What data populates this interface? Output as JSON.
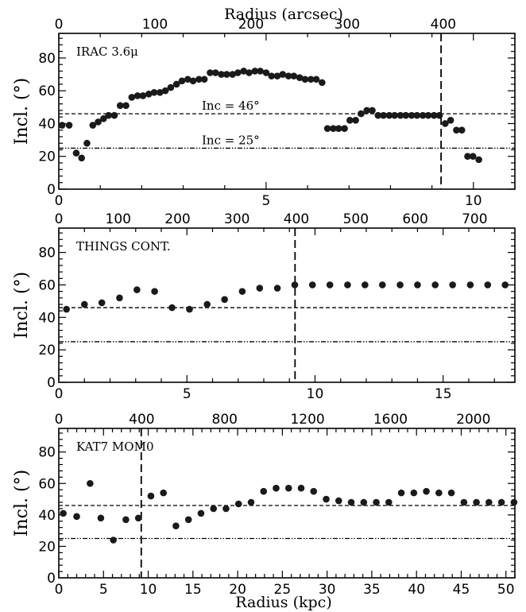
{
  "figure": {
    "top_axis_title": "Radius (arcsec)",
    "bottom_axis_title": "Radius (kpc)"
  },
  "chart_data": [
    {
      "type": "scatter",
      "panel_label": "IRAC 3.6μ",
      "ylabel": "Incl. (°)",
      "xlabel_top": "Radius (arcsec)",
      "xlim": [
        0,
        11
      ],
      "ylim": [
        0,
        95
      ],
      "top_xlim": [
        0,
        474.5
      ],
      "x_ticks": [
        0,
        5,
        10
      ],
      "y_ticks": [
        0,
        20,
        40,
        60,
        80
      ],
      "top_ticks": [
        0,
        100,
        200,
        300,
        400
      ],
      "vline": 9.22,
      "hlines": [
        {
          "y": 46,
          "style": "dashed",
          "label": "Inc = 46°"
        },
        {
          "y": 25,
          "style": "dashdotdot",
          "label": "Inc = 25°"
        }
      ],
      "x": [
        0.08,
        0.25,
        0.42,
        0.55,
        0.68,
        0.82,
        0.95,
        1.08,
        1.2,
        1.34,
        1.48,
        1.62,
        1.76,
        1.9,
        2.03,
        2.17,
        2.3,
        2.44,
        2.57,
        2.7,
        2.84,
        2.97,
        3.11,
        3.24,
        3.38,
        3.51,
        3.65,
        3.78,
        3.92,
        4.05,
        4.19,
        4.32,
        4.46,
        4.59,
        4.73,
        4.86,
        5.0,
        5.13,
        5.27,
        5.4,
        5.54,
        5.67,
        5.81,
        5.94,
        6.08,
        6.21,
        6.35,
        6.48,
        6.62,
        6.75,
        6.89,
        7.02,
        7.16,
        7.29,
        7.43,
        7.56,
        7.7,
        7.83,
        7.97,
        8.1,
        8.24,
        8.37,
        8.51,
        8.64,
        8.78,
        8.91,
        9.05,
        9.18,
        9.32,
        9.45,
        9.59,
        9.72,
        9.86,
        9.99,
        10.13
      ],
      "y": [
        39,
        39,
        22,
        19,
        28,
        39,
        41,
        43,
        45,
        45,
        51,
        51,
        56,
        57,
        57,
        58,
        59,
        59,
        60,
        62,
        64,
        66,
        67,
        66,
        67,
        67,
        71,
        71,
        70,
        70,
        70,
        71,
        72,
        71,
        72,
        72,
        71,
        69,
        69,
        70,
        69,
        69,
        68,
        67,
        67,
        67,
        65,
        37,
        37,
        37,
        37,
        42,
        42,
        46,
        48,
        48,
        45,
        45,
        45,
        45,
        45,
        45,
        45,
        45,
        45,
        45,
        45,
        45,
        40,
        42,
        36,
        36,
        20,
        20,
        18
      ]
    },
    {
      "type": "scatter",
      "panel_label": "THINGS CONT.",
      "ylabel": "Incl. (°)",
      "xlim": [
        0,
        17.8
      ],
      "ylim": [
        0,
        95
      ],
      "top_xlim": [
        0,
        767.8
      ],
      "x_ticks": [
        0,
        5,
        10,
        15
      ],
      "y_ticks": [
        0,
        20,
        40,
        60,
        80
      ],
      "top_ticks": [
        0,
        100,
        200,
        300,
        400,
        500,
        600,
        700
      ],
      "vline": 9.22,
      "hlines": [
        {
          "y": 46,
          "style": "dashed",
          "label": ""
        },
        {
          "y": 25,
          "style": "dashdotdot",
          "label": ""
        }
      ],
      "x": [
        0.3,
        1.0,
        1.68,
        2.37,
        3.05,
        3.74,
        4.42,
        5.1,
        5.79,
        6.47,
        7.16,
        7.84,
        8.53,
        9.21,
        9.9,
        10.58,
        11.27,
        11.95,
        12.63,
        13.32,
        14.0,
        14.69,
        15.37,
        16.06,
        16.74,
        17.42
      ],
      "y": [
        45,
        48,
        49,
        52,
        57,
        56,
        46,
        45,
        48,
        51,
        56,
        58,
        58,
        60,
        60,
        60,
        60,
        60,
        60,
        60,
        60,
        60,
        60,
        60,
        60,
        60
      ]
    },
    {
      "type": "scatter",
      "panel_label": "KAT7 MOM0",
      "ylabel": "Incl. (°)",
      "xlim": [
        0,
        51
      ],
      "ylim": [
        0,
        95
      ],
      "top_xlim": [
        0,
        2200
      ],
      "x_ticks": [
        0,
        5,
        10,
        15,
        20,
        25,
        30,
        35,
        40,
        45,
        50
      ],
      "y_ticks": [
        0,
        20,
        40,
        60,
        80
      ],
      "top_ticks": [
        0,
        400,
        800,
        1200,
        1600,
        2000
      ],
      "vline": 9.22,
      "hlines": [
        {
          "y": 46,
          "style": "dashed",
          "label": ""
        },
        {
          "y": 25,
          "style": "dashdotdot",
          "label": ""
        }
      ],
      "x": [
        0.5,
        2.0,
        3.5,
        4.7,
        6.1,
        7.5,
        8.9,
        10.3,
        11.7,
        13.1,
        14.5,
        15.9,
        17.3,
        18.7,
        20.1,
        21.5,
        22.9,
        24.3,
        25.7,
        27.1,
        28.5,
        29.9,
        31.3,
        32.7,
        34.1,
        35.5,
        36.9,
        38.3,
        39.7,
        41.1,
        42.5,
        43.9,
        45.3,
        46.7,
        48.1,
        49.5,
        50.9
      ],
      "y": [
        41,
        39,
        60,
        38,
        24,
        37,
        38,
        52,
        54,
        33,
        37,
        41,
        44,
        44,
        47,
        48,
        55,
        57,
        57,
        57,
        55,
        50,
        49,
        48,
        48,
        48,
        48,
        54,
        54,
        55,
        54,
        54,
        48,
        48,
        48,
        48,
        48
      ]
    }
  ]
}
